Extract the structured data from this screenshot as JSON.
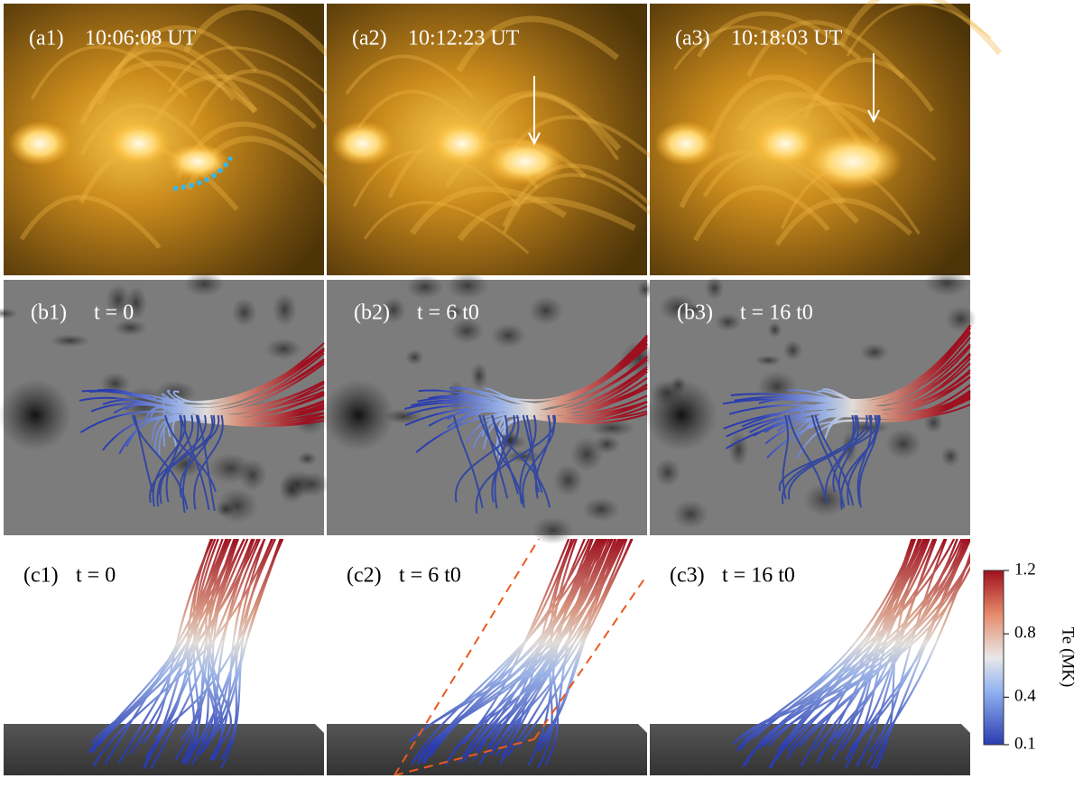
{
  "panels_a": [
    {
      "label": "(a1)",
      "time": "10:06:08 UT"
    },
    {
      "label": "(a2)",
      "time": "10:12:23 UT"
    },
    {
      "label": "(a3)",
      "time": "10:18:03 UT"
    }
  ],
  "panels_b": [
    {
      "label": "(b1)",
      "time": "t = 0"
    },
    {
      "label": "(b2)",
      "time": "t = 6 t0"
    },
    {
      "label": "(b3)",
      "time": "t = 16 t0"
    }
  ],
  "panels_c": [
    {
      "label": "(c1)",
      "time": "t = 0"
    },
    {
      "label": "(c2)",
      "time": "t = 6 t0"
    },
    {
      "label": "(c3)",
      "time": "t = 16 t0"
    }
  ],
  "colorbar": {
    "title": "Te (MK)",
    "lim": [
      0.1,
      1.2
    ],
    "ticks": [
      0.1,
      0.4,
      0.8,
      1.2
    ]
  }
}
